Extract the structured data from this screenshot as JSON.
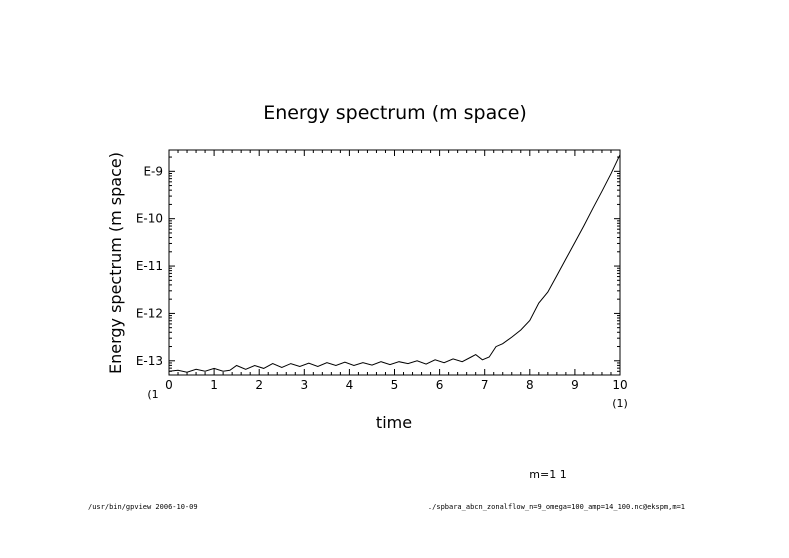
{
  "chart_data": {
    "type": "line",
    "title": "Energy spectrum (m space)",
    "xlabel": "time",
    "ylabel": "Energy spectrum (m space)",
    "xlim": [
      0,
      10
    ],
    "x_unit_note": "(1)",
    "x_tick_labels": [
      "0",
      "1",
      "2",
      "3",
      "4",
      "5",
      "6",
      "7",
      "8",
      "9",
      "10"
    ],
    "y_scale": "log",
    "ylim_log10": [
      -13.3,
      -8.55
    ],
    "y_tick_labels": [
      {
        "log10": -13,
        "label": "E-13"
      },
      {
        "log10": -12,
        "label": "E-12"
      },
      {
        "log10": -11,
        "label": "E-11"
      },
      {
        "log10": -10,
        "label": "E-10"
      },
      {
        "log10": -9,
        "label": "E-9"
      }
    ],
    "y_unit_note": "(1",
    "grid": false,
    "series": [
      {
        "x": [
          0,
          0.2,
          0.4,
          0.6,
          0.8,
          1.0,
          1.2,
          1.35,
          1.5,
          1.7,
          1.9,
          2.1,
          2.3,
          2.5,
          2.7,
          2.9,
          3.1,
          3.3,
          3.5,
          3.7,
          3.9,
          4.1,
          4.3,
          4.5,
          4.7,
          4.9,
          5.1,
          5.3,
          5.5,
          5.7,
          5.9,
          6.1,
          6.3,
          6.5,
          6.7,
          6.8,
          6.95,
          7.1,
          7.25,
          7.4,
          7.6,
          7.8,
          8.0,
          8.2,
          8.4,
          8.6,
          8.8,
          9.0,
          9.2,
          9.4,
          9.6,
          9.8,
          10.0
        ],
        "y_log10": [
          -13.22,
          -13.2,
          -13.24,
          -13.18,
          -13.22,
          -13.16,
          -13.22,
          -13.2,
          -13.1,
          -13.18,
          -13.1,
          -13.16,
          -13.06,
          -13.14,
          -13.06,
          -13.12,
          -13.05,
          -13.12,
          -13.04,
          -13.1,
          -13.03,
          -13.1,
          -13.04,
          -13.09,
          -13.02,
          -13.08,
          -13.02,
          -13.06,
          -13.0,
          -13.07,
          -12.98,
          -13.04,
          -12.96,
          -13.02,
          -12.92,
          -12.87,
          -12.98,
          -12.92,
          -12.7,
          -12.64,
          -12.5,
          -12.35,
          -12.15,
          -11.78,
          -11.55,
          -11.2,
          -10.85,
          -10.5,
          -10.15,
          -9.78,
          -9.42,
          -9.05,
          -8.65
        ]
      }
    ]
  },
  "annotation": "m=1  1",
  "footer": {
    "left": "/usr/bin/gpview  2006-10-09",
    "right": "./spbara_abcn_zonalflow_n=9_omega=100_amp=14_100.nc@ekspm,m=1"
  }
}
